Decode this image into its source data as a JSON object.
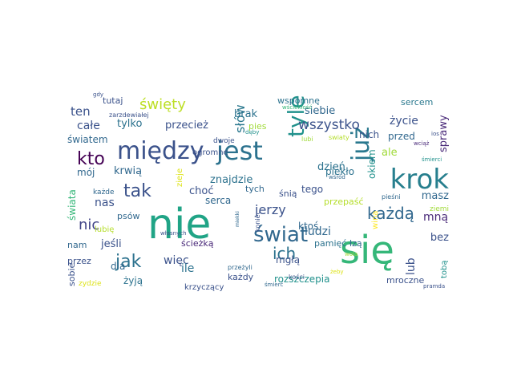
{
  "cloud": {
    "words": [
      {
        "text": "nie",
        "color": "#20a486",
        "size": 52
      },
      {
        "text": "się",
        "color": "#35b779",
        "size": 48
      },
      {
        "text": "krok",
        "color": "#277f8e",
        "size": 34
      },
      {
        "text": "jest",
        "color": "#2c728e",
        "size": 32
      },
      {
        "text": "między",
        "color": "#3b528b",
        "size": 30
      },
      {
        "text": "już",
        "color": "#2a788e",
        "size": 30
      },
      {
        "text": "tyle",
        "color": "#21918c",
        "size": 28
      },
      {
        "text": "świat",
        "color": "#31688e",
        "size": 26
      },
      {
        "text": "kto",
        "color": "#440154",
        "size": 22
      },
      {
        "text": "tak",
        "color": "#3b528b",
        "size": 22
      },
      {
        "text": "jak",
        "color": "#2c728e",
        "size": 22
      },
      {
        "text": "każdą",
        "color": "#31688e",
        "size": 20
      },
      {
        "text": "ich",
        "color": "#2c728e",
        "size": 20
      },
      {
        "text": "święty",
        "color": "#bddf26",
        "size": 18
      },
      {
        "text": "nic",
        "color": "#414487",
        "size": 18
      },
      {
        "text": "wszystko",
        "color": "#3b528b",
        "size": 17
      },
      {
        "text": "słów",
        "color": "#2a788e",
        "size": 16
      },
      {
        "text": "jerzy",
        "color": "#3b528b",
        "size": 16
      },
      {
        "text": "ten",
        "color": "#3b528b",
        "size": 15
      },
      {
        "text": "całe",
        "color": "#3b528b",
        "size": 14
      },
      {
        "text": "tylko",
        "color": "#2c728e",
        "size": 13
      },
      {
        "text": "przecież",
        "color": "#3b528b",
        "size": 13
      },
      {
        "text": "brak",
        "color": "#2c728e",
        "size": 13
      },
      {
        "text": "siebie",
        "color": "#31688e",
        "size": 13
      },
      {
        "text": "życie",
        "color": "#3b528b",
        "size": 14
      },
      {
        "text": "sprawy",
        "color": "#482878",
        "size": 13
      },
      {
        "text": "wspomnę",
        "color": "#2c728e",
        "size": 11
      },
      {
        "text": "sercem",
        "color": "#2a788e",
        "size": 11
      },
      {
        "text": "tutaj",
        "color": "#3b528b",
        "size": 11
      },
      {
        "text": "światem",
        "color": "#31688e",
        "size": 12
      },
      {
        "text": "pies",
        "color": "#a0da39",
        "size": 11
      },
      {
        "text": "nich",
        "color": "#3b528b",
        "size": 12
      },
      {
        "text": "ale",
        "color": "#a0da39",
        "size": 13
      },
      {
        "text": "przed",
        "color": "#31688e",
        "size": 12
      },
      {
        "text": "dzień",
        "color": "#2c728e",
        "size": 13
      },
      {
        "text": "krwią",
        "color": "#31688e",
        "size": 13
      },
      {
        "text": "mój",
        "color": "#31688e",
        "size": 12
      },
      {
        "text": "znajdzie",
        "color": "#2c728e",
        "size": 13
      },
      {
        "text": "piekło",
        "color": "#2c728e",
        "size": 12
      },
      {
        "text": "okiem",
        "color": "#21918c",
        "size": 12
      },
      {
        "text": "nas",
        "color": "#3b528b",
        "size": 14
      },
      {
        "text": "choć",
        "color": "#3b528b",
        "size": 13
      },
      {
        "text": "tego",
        "color": "#3b528b",
        "size": 12
      },
      {
        "text": "masz",
        "color": "#31688e",
        "size": 13
      },
      {
        "text": "świata",
        "color": "#35b779",
        "size": 12
      },
      {
        "text": "serca",
        "color": "#31688e",
        "size": 12
      },
      {
        "text": "śnią",
        "color": "#3b528b",
        "size": 11
      },
      {
        "text": "tych",
        "color": "#31688e",
        "size": 11
      },
      {
        "text": "ktoś",
        "color": "#31688e",
        "size": 12
      },
      {
        "text": "ludzi",
        "color": "#31688e",
        "size": 14
      },
      {
        "text": "przepaść",
        "color": "#b5de2b",
        "size": 11
      },
      {
        "text": "mną",
        "color": "#482878",
        "size": 14
      },
      {
        "text": "psów",
        "color": "#31688e",
        "size": 11
      },
      {
        "text": "nam",
        "color": "#31688e",
        "size": 11
      },
      {
        "text": "jeśli",
        "color": "#3b528b",
        "size": 13
      },
      {
        "text": "ścieżką",
        "color": "#482878",
        "size": 11
      },
      {
        "text": "pamięć",
        "color": "#2c728e",
        "size": 11
      },
      {
        "text": "łzą",
        "color": "#31688e",
        "size": 11
      },
      {
        "text": "bez",
        "color": "#3b528b",
        "size": 13
      },
      {
        "text": "więc",
        "color": "#3b528b",
        "size": 14
      },
      {
        "text": "mgłą",
        "color": "#3b528b",
        "size": 12
      },
      {
        "text": "lub",
        "color": "#3b528b",
        "size": 14
      },
      {
        "text": "dla",
        "color": "#31688e",
        "size": 12
      },
      {
        "text": "ile",
        "color": "#2c728e",
        "size": 14
      },
      {
        "text": "rozszczepia",
        "color": "#21918c",
        "size": 12
      },
      {
        "text": "mroczne",
        "color": "#3b528b",
        "size": 11
      },
      {
        "text": "żyją",
        "color": "#2c728e",
        "size": 12
      },
      {
        "text": "każdy",
        "color": "#3b528b",
        "size": 11
      },
      {
        "text": "sobie",
        "color": "#3b528b",
        "size": 11
      },
      {
        "text": "krzyczący",
        "color": "#3b528b",
        "size": 10
      },
      {
        "text": "zydzie",
        "color": "#dde318",
        "size": 9
      },
      {
        "text": "przez",
        "color": "#3b528b",
        "size": 11
      },
      {
        "text": "lubię",
        "color": "#b5de2b",
        "size": 10
      },
      {
        "text": "każde",
        "color": "#31688e",
        "size": 9
      },
      {
        "text": "ogromne",
        "color": "#3b528b",
        "size": 10
      },
      {
        "text": "dwoje",
        "color": "#3b528b",
        "size": 9
      },
      {
        "text": "ziemi",
        "color": "#a0da39",
        "size": 9
      },
      {
        "text": "wina",
        "color": "#fde725",
        "size": 10
      },
      {
        "text": "tobą",
        "color": "#21918c",
        "size": 10
      },
      {
        "text": "zarzdewiałej",
        "color": "#3b528b",
        "size": 8
      },
      {
        "text": "gdy",
        "color": "#3b528b",
        "size": 7
      },
      {
        "text": "wściekłość",
        "color": "#35b779",
        "size": 7
      },
      {
        "text": "lubi",
        "color": "#a0da39",
        "size": 8
      },
      {
        "text": "swiaty",
        "color": "#b5de2b",
        "size": 8
      },
      {
        "text": "dęby",
        "color": "#21918c",
        "size": 7
      },
      {
        "text": "ios",
        "color": "#3b528b",
        "size": 7
      },
      {
        "text": "wciąż",
        "color": "#482878",
        "size": 7
      },
      {
        "text": "śmierci",
        "color": "#21918c",
        "size": 7
      },
      {
        "text": "wśród",
        "color": "#31688e",
        "size": 7
      },
      {
        "text": "pieśni",
        "color": "#31688e",
        "size": 8
      },
      {
        "text": "wola",
        "color": "#a0da39",
        "size": 7
      },
      {
        "text": "żeby",
        "color": "#dde318",
        "size": 7
      },
      {
        "text": "pramda",
        "color": "#3b528b",
        "size": 7
      },
      {
        "text": "śmierć",
        "color": "#31688e",
        "size": 7
      },
      {
        "text": "kości",
        "color": "#3b528b",
        "size": 8
      },
      {
        "text": "przeżyli",
        "color": "#31688e",
        "size": 8
      },
      {
        "text": "koniec",
        "color": "#3b528b",
        "size": 8
      },
      {
        "text": "miekki",
        "color": "#31688e",
        "size": 6
      },
      {
        "text": "własnych",
        "color": "#3b528b",
        "size": 7
      },
      {
        "text": "zieje",
        "color": "#dde318",
        "size": 10
      }
    ]
  }
}
